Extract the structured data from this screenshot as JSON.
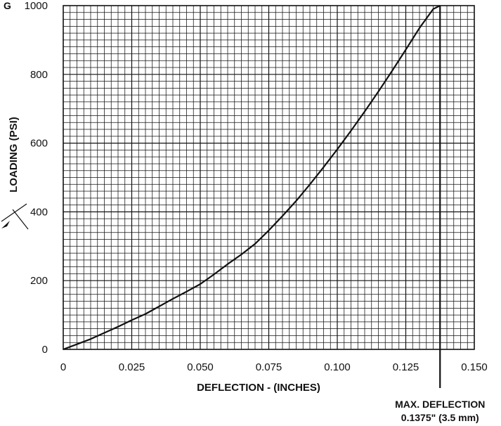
{
  "chart_data": {
    "type": "line",
    "title": "",
    "xlabel": "DEFLECTION - (INCHES)",
    "ylabel": "LOADING (PSI)",
    "xlim": [
      0,
      0.15
    ],
    "ylim": [
      0,
      1000
    ],
    "x_ticks": [
      "0",
      "0.025",
      "0.050",
      "0.075",
      "0.100",
      "0.125",
      "0.150"
    ],
    "y_ticks": [
      "0",
      "200",
      "400",
      "600",
      "800",
      "1000"
    ],
    "grid": true,
    "series": [
      {
        "x": [
          0,
          0.005,
          0.01,
          0.015,
          0.02,
          0.025,
          0.03,
          0.035,
          0.04,
          0.045,
          0.05,
          0.055,
          0.06,
          0.065,
          0.07,
          0.075,
          0.08,
          0.085,
          0.09,
          0.095,
          0.1,
          0.105,
          0.11,
          0.115,
          0.12,
          0.125,
          0.13,
          0.135,
          0.1375
        ],
        "y": [
          0,
          15,
          30,
          48,
          66,
          85,
          103,
          125,
          147,
          168,
          190,
          218,
          248,
          276,
          307,
          346,
          388,
          432,
          480,
          530,
          582,
          636,
          692,
          750,
          810,
          872,
          935,
          990,
          1000
        ]
      }
    ],
    "annotations": [
      {
        "text_line1": "MAX. DEFLECTION",
        "text_line2": "0.1375\" (3.5 mm)",
        "x": 0.1375
      }
    ],
    "top_left_fragment": "G"
  }
}
